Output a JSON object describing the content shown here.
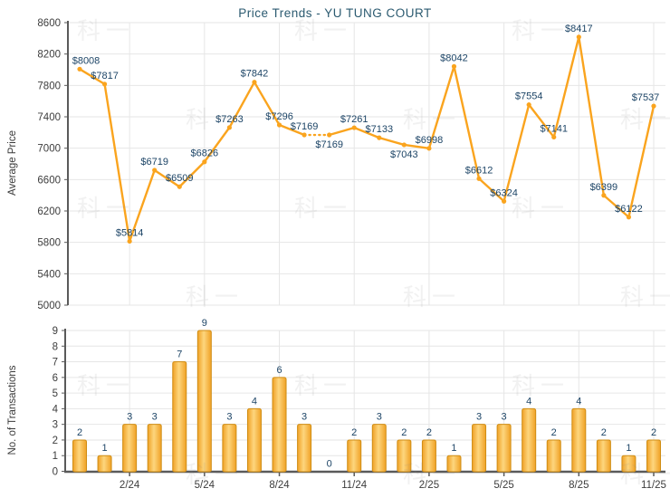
{
  "watermark": {
    "text": "科一"
  },
  "colors": {
    "line": "#FAA41E",
    "bar_edge": "#F0A125",
    "bar_center": "#FDD67E",
    "bar_border": "#CF8D15",
    "value_label": "#1C4466",
    "title": "#2B5A70",
    "axis_text": "#3D3D3D",
    "grid": "#E6E6E6",
    "axis_line": "#5A5A5A"
  },
  "chart_data": [
    {
      "type": "line",
      "title": "Price Trends - YU TUNG COURT",
      "xlabel": "",
      "ylabel": "Average Price",
      "x": [
        "12/23",
        "1/24",
        "2/24",
        "3/24",
        "4/24",
        "5/24",
        "6/24",
        "7/24",
        "8/24",
        "9/24",
        "10/24",
        "11/24",
        "12/24",
        "1/25",
        "2/25",
        "3/25",
        "4/25",
        "5/25",
        "6/25",
        "7/25",
        "8/25",
        "9/25",
        "10/25",
        "11/25"
      ],
      "values": [
        8008,
        7817,
        5814,
        6719,
        6509,
        6826,
        7263,
        7842,
        7296,
        7169,
        7169,
        7261,
        7133,
        7043,
        6998,
        8042,
        6612,
        6324,
        7554,
        7141,
        8417,
        6399,
        6122,
        7537
      ],
      "point_labels": [
        "$8008",
        "$7817",
        "$5814",
        "$6719",
        "$6509",
        "$6826",
        "$7263",
        "$7842",
        "$7296",
        "$7169",
        "$7169",
        "$7261",
        "$7133",
        "$7043",
        "$6998",
        "$8042",
        "$6612",
        "$6324",
        "$7554",
        "$7141",
        "$8417",
        "$6399",
        "$6122",
        "$7537"
      ],
      "ylim": [
        5000,
        8600
      ],
      "yticks": [
        8600,
        8200,
        7800,
        7400,
        7000,
        6600,
        6200,
        5800,
        5400,
        5000
      ],
      "xticks_shown": [
        "2/24",
        "5/24",
        "8/24",
        "11/24",
        "2/25",
        "5/25",
        "8/25",
        "11/25"
      ],
      "dashed_between": [
        "9/24",
        "10/24"
      ],
      "grid": true,
      "legend": "none"
    },
    {
      "type": "bar",
      "title": "",
      "xlabel": "",
      "ylabel": "No. of Transactions",
      "x": [
        "12/23",
        "1/24",
        "2/24",
        "3/24",
        "4/24",
        "5/24",
        "6/24",
        "7/24",
        "8/24",
        "9/24",
        "10/24",
        "11/24",
        "12/24",
        "1/25",
        "2/25",
        "3/25",
        "4/25",
        "5/25",
        "6/25",
        "7/25",
        "8/25",
        "9/25",
        "10/25",
        "11/25"
      ],
      "values": [
        2,
        1,
        3,
        3,
        7,
        9,
        3,
        4,
        6,
        3,
        0,
        2,
        3,
        2,
        2,
        1,
        3,
        3,
        4,
        2,
        4,
        2,
        1,
        2
      ],
      "ylim": [
        0,
        9
      ],
      "yticks": [
        9,
        8,
        7,
        6,
        5,
        4,
        3,
        2,
        1,
        0
      ],
      "xticks_shown": [
        "2/24",
        "5/24",
        "8/24",
        "11/24",
        "2/25",
        "5/25",
        "8/25",
        "11/25"
      ],
      "grid": true,
      "legend": "none"
    }
  ]
}
